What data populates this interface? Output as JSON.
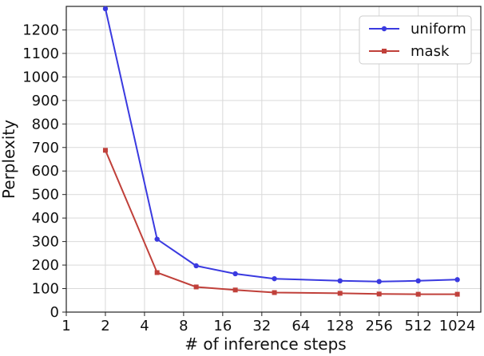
{
  "chart_data": {
    "type": "line",
    "xlabel": "# of inference steps",
    "ylabel": "Perplexity",
    "x_scale": "log2",
    "xlim": [
      1,
      1024
    ],
    "ylim": [
      0,
      1300
    ],
    "xticks": [
      1,
      2,
      4,
      8,
      16,
      32,
      64,
      128,
      256,
      512,
      1024
    ],
    "xtick_labels": [
      "1",
      "2",
      "4",
      "8",
      "16",
      "32",
      "64",
      "128",
      "256",
      "512",
      "1024"
    ],
    "yticks": [
      0,
      100,
      200,
      300,
      400,
      500,
      600,
      700,
      800,
      900,
      1000,
      1100,
      1200
    ],
    "grid": true,
    "legend_position": "top-right",
    "series": [
      {
        "name": "uniform",
        "color": "#3a3ae0",
        "marker": "circle",
        "x": [
          2,
          5,
          10,
          20,
          40,
          128,
          256,
          512,
          1024
        ],
        "values": [
          1290,
          310,
          197,
          163,
          142,
          133,
          130,
          133,
          138
        ]
      },
      {
        "name": "mask",
        "color": "#c0403a",
        "marker": "square",
        "x": [
          2,
          5,
          10,
          20,
          40,
          128,
          256,
          512,
          1024
        ],
        "values": [
          688,
          168,
          107,
          94,
          83,
          80,
          77,
          76,
          76
        ]
      }
    ]
  }
}
